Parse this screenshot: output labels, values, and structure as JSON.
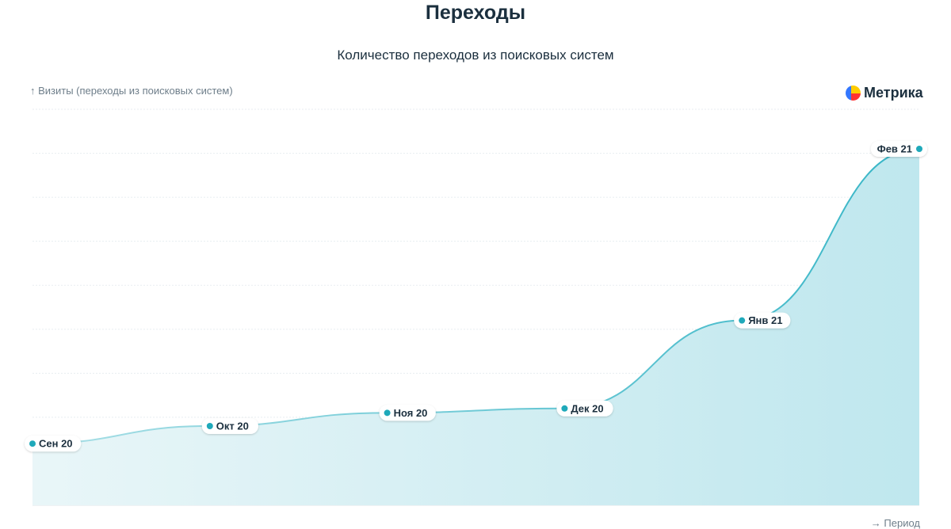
{
  "header": {
    "title": "Переходы",
    "subtitle": "Количество переходов из поисковых систем"
  },
  "logo": {
    "text": "Метрика",
    "icon": "yandex-metrica-icon",
    "colors": [
      "#ff3333",
      "#ffcc00",
      "#3377ff"
    ]
  },
  "chart_data": {
    "type": "area",
    "title": "Количество переходов из поисковых систем",
    "ylabel": "↑ Визиты (переходы из поисковых систем)",
    "xlabel": "→ Период",
    "categories": [
      "Сен 20",
      "Окт 20",
      "Ноя 20",
      "Дек 20",
      "Янв 21",
      "Фев 21"
    ],
    "series": [
      {
        "values": [
          14,
          18,
          21,
          22,
          42,
          81
        ]
      }
    ],
    "ylim": [
      0,
      90
    ],
    "grid": true,
    "colors": {
      "line": "#3bb8c8",
      "fill": "#bfe7ee",
      "marker": "#1fa9ba"
    }
  }
}
